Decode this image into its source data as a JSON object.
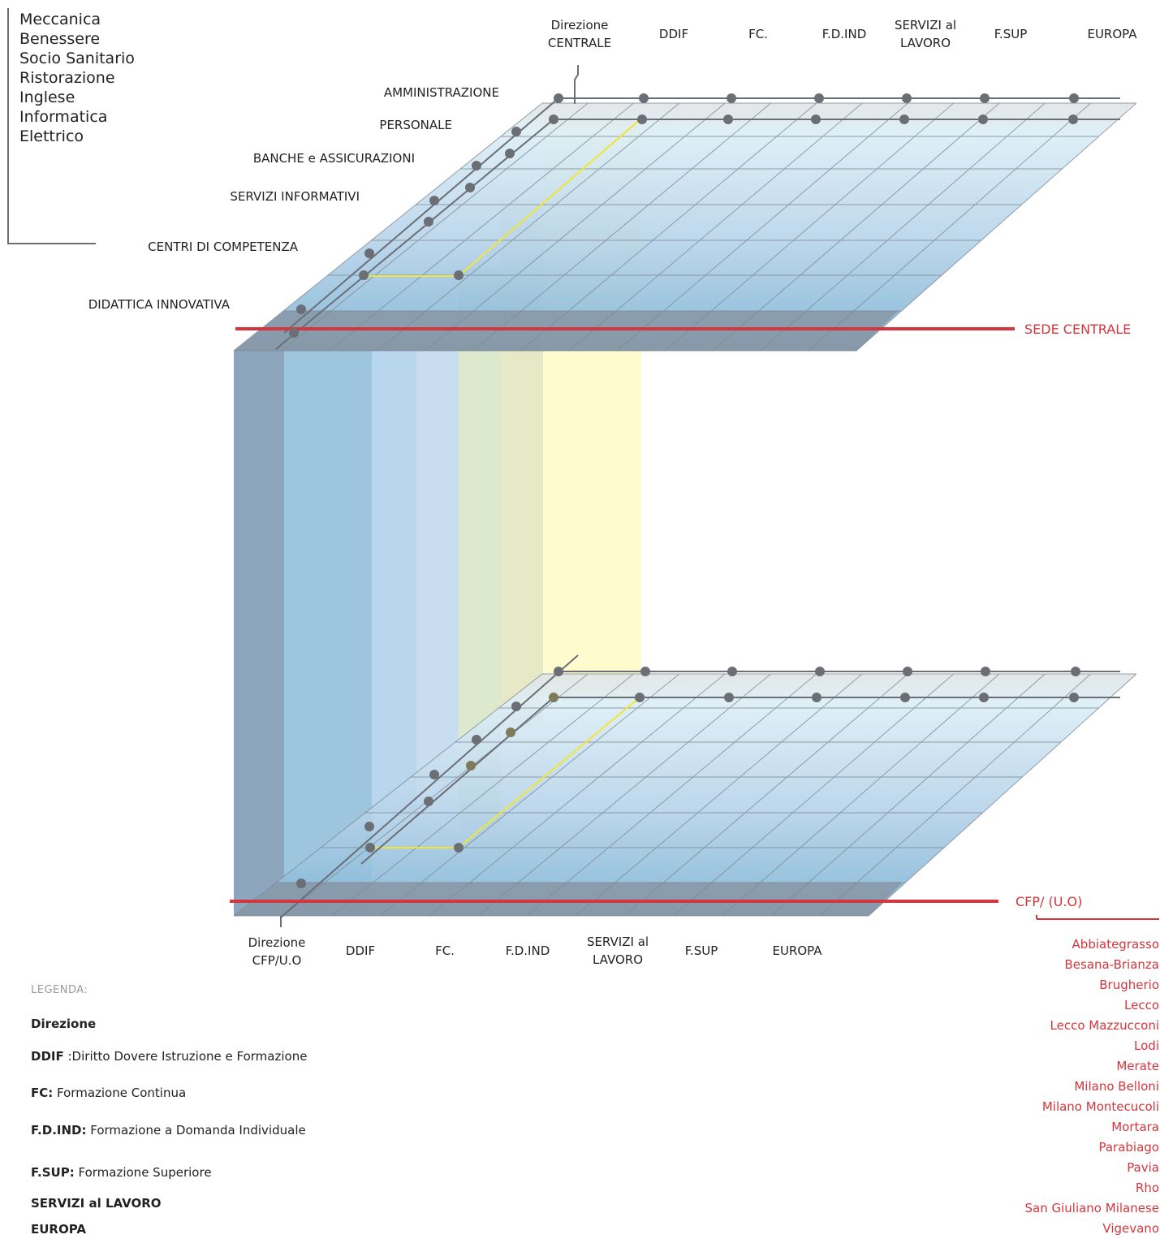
{
  "competences": [
    "Meccanica",
    "Benessere",
    "Socio Sanitario",
    "Ristorazione",
    "Inglese",
    "Informatica",
    "Elettrico"
  ],
  "top_columns": [
    {
      "id": "dir",
      "label": "Direzione CENTRALE"
    },
    {
      "id": "ddif",
      "label": "DDIF"
    },
    {
      "id": "fc",
      "label": "FC."
    },
    {
      "id": "fdind",
      "label": "F.D.IND"
    },
    {
      "id": "servizi",
      "label": "SERVIZI al LAVORO"
    },
    {
      "id": "fsup",
      "label": "F.SUP"
    },
    {
      "id": "europa",
      "label": "EUROPA"
    }
  ],
  "bottom_columns": [
    {
      "id": "dir",
      "label": "Direzione CFP/U.O"
    },
    {
      "id": "ddif",
      "label": "DDIF"
    },
    {
      "id": "fc",
      "label": "FC."
    },
    {
      "id": "fdind",
      "label": "F.D.IND"
    },
    {
      "id": "servizi",
      "label": "SERVIZI al LAVORO"
    },
    {
      "id": "fsup",
      "label": "F.SUP"
    },
    {
      "id": "europa",
      "label": "EUROPA"
    }
  ],
  "rows": [
    "AMMINISTRAZIONE",
    "PERSONALE",
    "BANCHE e ASSICURAZIONI",
    "SERVIZI INFORMATIVI",
    "CENTRI DI COMPETENZA",
    "DIDATTICA INNOVATIVA"
  ],
  "levels": {
    "top": "SEDE CENTRALE",
    "bottom": "CFP/ (U.O)"
  },
  "cities": [
    "Abbiategrasso",
    "Besana-Brianza",
    "Brugherio",
    "Lecco",
    "Lecco Mazzucconi",
    "Lodi",
    "Merate",
    "Milano Belloni",
    "Milano Montecucoli",
    "Mortara",
    "Parabiago",
    "Pavia",
    "Rho",
    "San Giuliano Milanese",
    "Vigevano"
  ],
  "legend": {
    "title": "LEGENDA:",
    "items": [
      {
        "key": "Direzione",
        "desc": ""
      },
      {
        "key": "DDIF",
        "desc": " :Diritto Dovere Istruzione e Formazione"
      },
      {
        "key": "FC:",
        "desc": " Formazione Continua"
      },
      {
        "key": "F.D.IND:",
        "desc": " Formazione a Domanda Individuale"
      },
      {
        "key": "F.SUP:",
        "desc": " Formazione Superiore"
      },
      {
        "key": "SERVIZI al LAVORO",
        "desc": ""
      },
      {
        "key": "EUROPA",
        "desc": ""
      }
    ]
  },
  "colors": {
    "accent_red": "#d3363c",
    "node": "#6b6f75",
    "path": "#f2e633"
  }
}
